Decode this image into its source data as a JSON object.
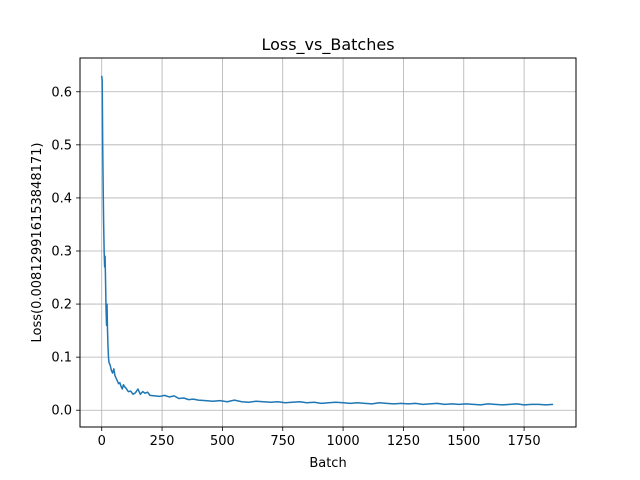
{
  "chart_data": {
    "type": "line",
    "title": "Loss_vs_Batches",
    "xlabel": "Batch",
    "ylabel": "Loss(0.008129916153848171)",
    "xlim": [
      -90,
      1965
    ],
    "ylim": [
      -0.0316,
      0.6636
    ],
    "xticks": [
      0,
      250,
      500,
      750,
      1000,
      1250,
      1500,
      1750
    ],
    "yticks": [
      0.0,
      0.1,
      0.2,
      0.3,
      0.4,
      0.5,
      0.6
    ],
    "xtick_labels": [
      "0",
      "250",
      "500",
      "750",
      "1000",
      "1250",
      "1500",
      "1750"
    ],
    "ytick_labels": [
      "0.0",
      "0.1",
      "0.2",
      "0.3",
      "0.4",
      "0.5",
      "0.6"
    ],
    "grid": true,
    "series": [
      {
        "color": "#1f77b4",
        "x": [
          0,
          2,
          4,
          6,
          8,
          10,
          12,
          14,
          16,
          18,
          20,
          22,
          24,
          26,
          28,
          30,
          35,
          40,
          45,
          50,
          55,
          60,
          65,
          70,
          75,
          80,
          85,
          90,
          95,
          100,
          110,
          120,
          130,
          140,
          150,
          160,
          170,
          180,
          190,
          200,
          220,
          240,
          260,
          280,
          300,
          320,
          340,
          360,
          380,
          400,
          430,
          460,
          490,
          520,
          550,
          580,
          610,
          640,
          670,
          700,
          730,
          760,
          790,
          820,
          850,
          880,
          910,
          940,
          970,
          1000,
          1030,
          1060,
          1090,
          1120,
          1150,
          1180,
          1210,
          1240,
          1270,
          1300,
          1330,
          1360,
          1390,
          1420,
          1450,
          1480,
          1510,
          1540,
          1570,
          1600,
          1630,
          1660,
          1690,
          1720,
          1750,
          1780,
          1810,
          1840,
          1870
        ],
        "y": [
          0.63,
          0.62,
          0.5,
          0.42,
          0.35,
          0.3,
          0.27,
          0.29,
          0.24,
          0.19,
          0.16,
          0.2,
          0.15,
          0.12,
          0.1,
          0.09,
          0.085,
          0.075,
          0.07,
          0.078,
          0.065,
          0.06,
          0.055,
          0.05,
          0.052,
          0.045,
          0.04,
          0.048,
          0.044,
          0.042,
          0.035,
          0.036,
          0.03,
          0.033,
          0.04,
          0.03,
          0.035,
          0.032,
          0.034,
          0.028,
          0.027,
          0.026,
          0.028,
          0.025,
          0.027,
          0.022,
          0.023,
          0.02,
          0.021,
          0.019,
          0.018,
          0.017,
          0.018,
          0.016,
          0.019,
          0.016,
          0.015,
          0.017,
          0.016,
          0.015,
          0.016,
          0.014,
          0.015,
          0.016,
          0.014,
          0.015,
          0.013,
          0.014,
          0.015,
          0.014,
          0.013,
          0.014,
          0.013,
          0.012,
          0.014,
          0.013,
          0.012,
          0.013,
          0.012,
          0.013,
          0.011,
          0.012,
          0.013,
          0.011,
          0.012,
          0.011,
          0.012,
          0.011,
          0.01,
          0.012,
          0.011,
          0.01,
          0.011,
          0.012,
          0.01,
          0.011,
          0.011,
          0.01,
          0.011
        ]
      }
    ]
  }
}
